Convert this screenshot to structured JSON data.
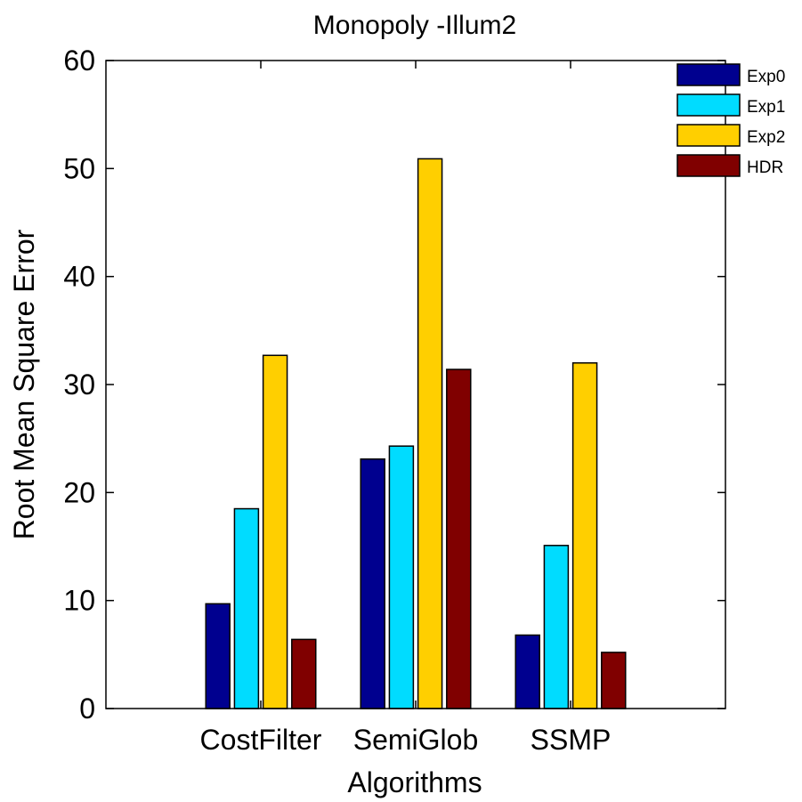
{
  "chart_data": {
    "type": "bar",
    "title": "Monopoly -Illum2",
    "xlabel": "Algorithms",
    "ylabel": "Root Mean Square Error",
    "categories": [
      "CostFilter",
      "SemiGlob",
      "SSMP"
    ],
    "series": [
      {
        "name": "Exp0",
        "color": "#00008f",
        "values": [
          9.7,
          23.1,
          6.8
        ]
      },
      {
        "name": "Exp1",
        "color": "#00dcff",
        "values": [
          18.5,
          24.3,
          15.1
        ]
      },
      {
        "name": "Exp2",
        "color": "#ffcf00",
        "values": [
          32.7,
          50.9,
          32.0
        ]
      },
      {
        "name": "HDR",
        "color": "#800000",
        "values": [
          6.4,
          31.4,
          5.2
        ]
      }
    ],
    "ylim": [
      0,
      60
    ],
    "yticks": [
      0,
      10,
      20,
      30,
      40,
      50,
      60
    ],
    "grid": false,
    "legend_position": "top-right"
  }
}
